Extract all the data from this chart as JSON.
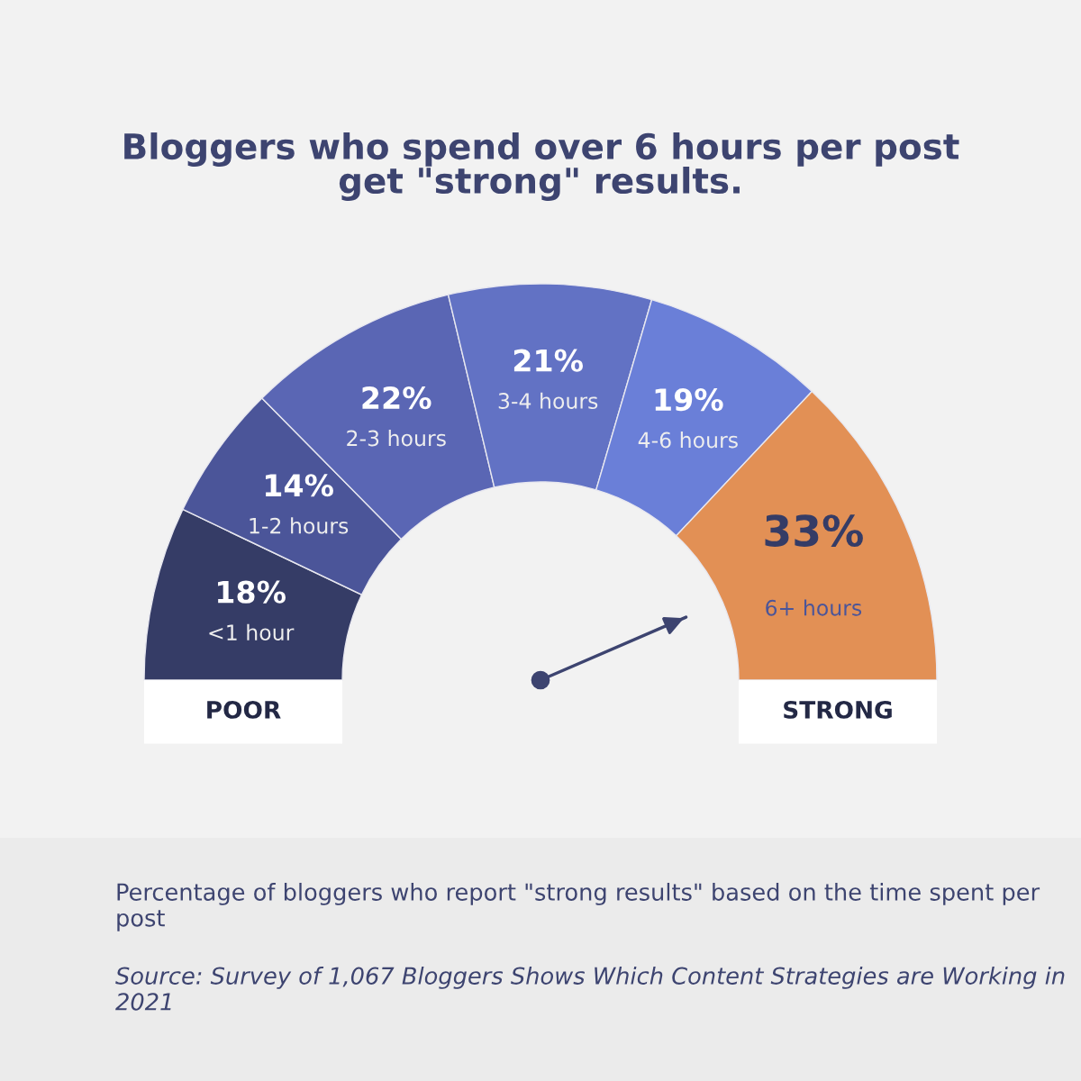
{
  "chart_data": {
    "type": "donut",
    "title": "Bloggers who spend over 6 hours per post\nget \"strong\" results.",
    "categories": [
      "<1 hour",
      "1-2 hours",
      "2-3 hours",
      "3-4 hours",
      "4-6 hours",
      "6+ hours"
    ],
    "values": [
      18,
      14,
      22,
      21,
      19,
      33
    ],
    "value_labels": [
      "18%",
      "14%",
      "22%",
      "21%",
      "19%",
      "33%"
    ],
    "colors": [
      "#353c66",
      "#4b5599",
      "#5a66b4",
      "#6272c4",
      "#6a7fd8",
      "#e29055"
    ],
    "needle": "6+ hours",
    "annotations": [
      "POOR",
      "STRONG",
      "Percentage of bloggers who report \"strong results\" based on the time spent per post",
      "Source: Survey of 1,067 Bloggers Shows Which Content Strategies are Working in 2021"
    ]
  }
}
